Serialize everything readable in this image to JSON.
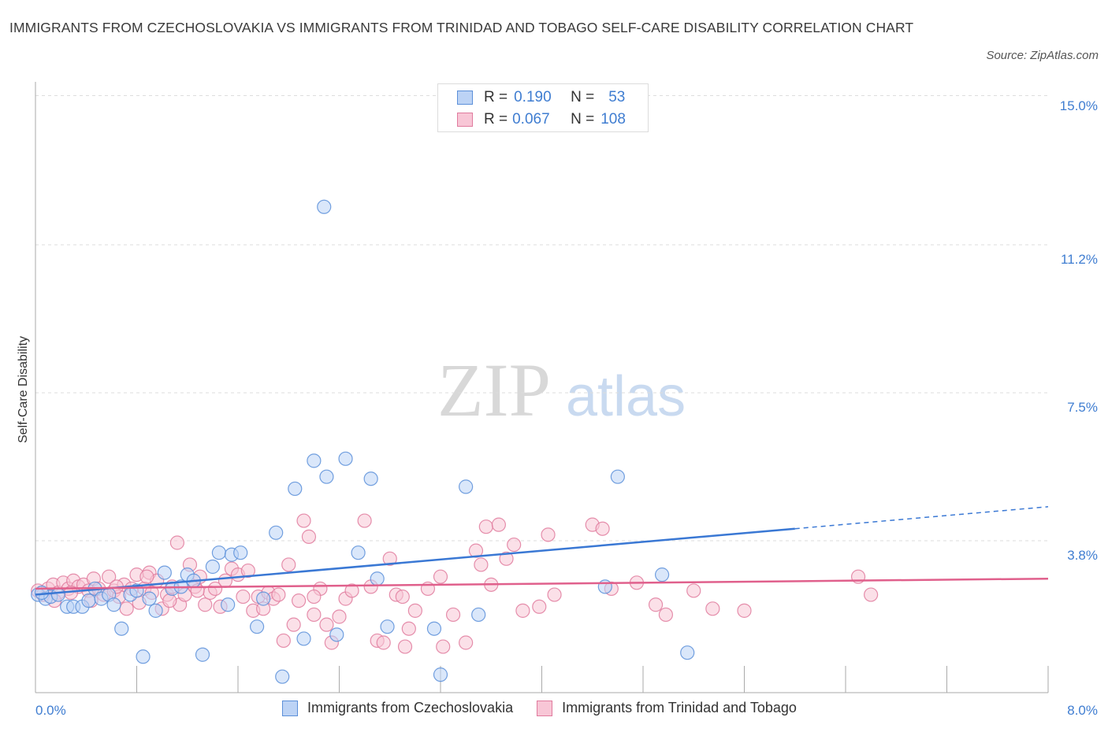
{
  "title": "IMMIGRANTS FROM CZECHOSLOVAKIA VS IMMIGRANTS FROM TRINIDAD AND TOBAGO SELF-CARE DISABILITY CORRELATION CHART",
  "source": "Source: ZipAtlas.com",
  "watermark": {
    "zip": "ZIP",
    "atlas": "atlas"
  },
  "legend_top": {
    "rows": [
      {
        "r_label": "R =",
        "r_value": "0.190",
        "n_label": "N =",
        "n_value": "53",
        "color": "#5b8fd9",
        "fill": "#bcd3f5"
      },
      {
        "r_label": "R =",
        "r_value": "0.067",
        "n_label": "N =",
        "n_value": "108",
        "color": "#e07b9e",
        "fill": "#f8c6d6"
      }
    ]
  },
  "chart_data": {
    "type": "scatter",
    "title": "IMMIGRANTS FROM CZECHOSLOVAKIA VS IMMIGRANTS FROM TRINIDAD AND TOBAGO SELF-CARE DISABILITY CORRELATION CHART",
    "xlabel": "",
    "ylabel": "Self-Care Disability",
    "xlim": [
      0,
      8.0
    ],
    "ylim": [
      0,
      15.0
    ],
    "x_tick_labels": [
      "0.0%",
      "8.0%"
    ],
    "y_ticks": [
      3.8,
      7.5,
      11.2,
      15.0
    ],
    "y_tick_labels": [
      "3.8%",
      "7.5%",
      "11.2%",
      "15.0%"
    ],
    "grid": true,
    "legend_position": "bottom",
    "series": [
      {
        "name": "Immigrants from Czechoslovakia",
        "color": "#5b8fd9",
        "fill": "#bcd3f5",
        "trend": {
          "x0": 0.0,
          "y0": 2.45,
          "x1": 6.0,
          "y1": 4.1,
          "x_dash_end": 8.0,
          "y_dash_end": 4.65
        },
        "points": [
          [
            0.02,
            2.45
          ],
          [
            0.08,
            2.35
          ],
          [
            0.12,
            2.4
          ],
          [
            0.18,
            2.45
          ],
          [
            0.25,
            2.15
          ],
          [
            0.3,
            2.15
          ],
          [
            0.37,
            2.15
          ],
          [
            0.42,
            2.3
          ],
          [
            0.47,
            2.6
          ],
          [
            0.52,
            2.35
          ],
          [
            0.58,
            2.45
          ],
          [
            0.62,
            2.2
          ],
          [
            0.68,
            1.6
          ],
          [
            0.75,
            2.45
          ],
          [
            0.8,
            2.55
          ],
          [
            0.85,
            0.9
          ],
          [
            0.9,
            2.35
          ],
          [
            0.95,
            2.05
          ],
          [
            1.02,
            3.0
          ],
          [
            1.08,
            2.6
          ],
          [
            1.15,
            2.65
          ],
          [
            1.2,
            2.95
          ],
          [
            1.32,
            0.95
          ],
          [
            1.4,
            3.15
          ],
          [
            1.45,
            3.5
          ],
          [
            1.52,
            2.2
          ],
          [
            1.55,
            3.45
          ],
          [
            1.62,
            3.5
          ],
          [
            1.75,
            1.65
          ],
          [
            1.8,
            2.35
          ],
          [
            1.9,
            4.0
          ],
          [
            1.95,
            0.4
          ],
          [
            2.05,
            5.1
          ],
          [
            2.12,
            1.35
          ],
          [
            2.2,
            5.8
          ],
          [
            2.28,
            12.15
          ],
          [
            2.3,
            5.4
          ],
          [
            2.38,
            1.45
          ],
          [
            2.45,
            5.85
          ],
          [
            2.55,
            3.5
          ],
          [
            2.65,
            5.35
          ],
          [
            2.7,
            2.85
          ],
          [
            2.78,
            1.65
          ],
          [
            3.15,
            1.6
          ],
          [
            3.2,
            0.45
          ],
          [
            3.4,
            5.15
          ],
          [
            3.5,
            1.95
          ],
          [
            4.5,
            2.65
          ],
          [
            4.6,
            5.4
          ],
          [
            4.95,
            2.95
          ],
          [
            5.15,
            1.0
          ],
          [
            0.05,
            2.5
          ],
          [
            1.25,
            2.8
          ]
        ]
      },
      {
        "name": "Immigrants from Trinidad and Tobago",
        "color": "#e07b9e",
        "fill": "#f8c6d6",
        "trend": {
          "x0": 0.0,
          "y0": 2.6,
          "x1": 8.0,
          "y1": 2.85
        },
        "points": [
          [
            0.02,
            2.55
          ],
          [
            0.06,
            2.45
          ],
          [
            0.1,
            2.6
          ],
          [
            0.14,
            2.7
          ],
          [
            0.18,
            2.5
          ],
          [
            0.22,
            2.75
          ],
          [
            0.26,
            2.6
          ],
          [
            0.3,
            2.8
          ],
          [
            0.34,
            2.65
          ],
          [
            0.38,
            2.7
          ],
          [
            0.42,
            2.55
          ],
          [
            0.46,
            2.85
          ],
          [
            0.5,
            2.6
          ],
          [
            0.54,
            2.45
          ],
          [
            0.58,
            2.9
          ],
          [
            0.62,
            2.55
          ],
          [
            0.66,
            2.4
          ],
          [
            0.7,
            2.7
          ],
          [
            0.72,
            2.1
          ],
          [
            0.76,
            2.6
          ],
          [
            0.8,
            2.95
          ],
          [
            0.82,
            2.25
          ],
          [
            0.86,
            2.6
          ],
          [
            0.9,
            3.0
          ],
          [
            0.92,
            2.5
          ],
          [
            0.96,
            2.8
          ],
          [
            1.0,
            2.1
          ],
          [
            1.04,
            2.45
          ],
          [
            1.08,
            2.65
          ],
          [
            1.12,
            3.75
          ],
          [
            1.14,
            2.2
          ],
          [
            1.18,
            2.45
          ],
          [
            1.22,
            3.2
          ],
          [
            1.26,
            2.65
          ],
          [
            1.3,
            2.9
          ],
          [
            1.34,
            2.2
          ],
          [
            1.38,
            2.5
          ],
          [
            1.42,
            2.6
          ],
          [
            1.46,
            2.15
          ],
          [
            1.5,
            2.8
          ],
          [
            1.55,
            3.1
          ],
          [
            1.6,
            2.95
          ],
          [
            1.64,
            2.4
          ],
          [
            1.68,
            3.05
          ],
          [
            1.72,
            2.05
          ],
          [
            1.76,
            2.4
          ],
          [
            1.8,
            2.1
          ],
          [
            1.84,
            2.5
          ],
          [
            1.88,
            2.35
          ],
          [
            1.92,
            2.45
          ],
          [
            1.96,
            1.3
          ],
          [
            2.0,
            3.2
          ],
          [
            2.04,
            1.7
          ],
          [
            2.08,
            2.3
          ],
          [
            2.12,
            4.3
          ],
          [
            2.16,
            3.9
          ],
          [
            2.2,
            1.95
          ],
          [
            2.25,
            2.6
          ],
          [
            2.3,
            1.7
          ],
          [
            2.34,
            1.25
          ],
          [
            2.4,
            1.9
          ],
          [
            2.45,
            2.35
          ],
          [
            2.5,
            2.55
          ],
          [
            2.6,
            4.3
          ],
          [
            2.65,
            2.65
          ],
          [
            2.7,
            1.3
          ],
          [
            2.75,
            1.25
          ],
          [
            2.8,
            3.35
          ],
          [
            2.85,
            2.45
          ],
          [
            2.9,
            2.4
          ],
          [
            2.95,
            1.6
          ],
          [
            3.0,
            2.05
          ],
          [
            3.1,
            2.6
          ],
          [
            3.2,
            2.9
          ],
          [
            3.3,
            1.95
          ],
          [
            3.4,
            1.25
          ],
          [
            3.48,
            3.55
          ],
          [
            3.52,
            3.2
          ],
          [
            3.56,
            4.15
          ],
          [
            3.6,
            2.7
          ],
          [
            3.66,
            4.2
          ],
          [
            3.72,
            3.35
          ],
          [
            3.78,
            3.7
          ],
          [
            3.85,
            2.05
          ],
          [
            3.98,
            2.15
          ],
          [
            4.05,
            3.95
          ],
          [
            4.1,
            2.45
          ],
          [
            4.4,
            4.2
          ],
          [
            4.48,
            4.1
          ],
          [
            4.55,
            2.6
          ],
          [
            4.75,
            2.75
          ],
          [
            4.9,
            2.2
          ],
          [
            4.98,
            1.95
          ],
          [
            5.2,
            2.55
          ],
          [
            5.35,
            2.1
          ],
          [
            5.6,
            2.05
          ],
          [
            6.5,
            2.9
          ],
          [
            6.6,
            2.45
          ],
          [
            0.15,
            2.3
          ],
          [
            0.28,
            2.5
          ],
          [
            0.44,
            2.3
          ],
          [
            0.64,
            2.65
          ],
          [
            0.88,
            2.9
          ],
          [
            1.06,
            2.3
          ],
          [
            1.28,
            2.55
          ],
          [
            2.2,
            2.4
          ],
          [
            2.92,
            1.15
          ],
          [
            3.22,
            1.15
          ]
        ]
      }
    ]
  },
  "bottom_legend": [
    {
      "label": "Immigrants from Czechoslovakia",
      "color": "#5b8fd9",
      "fill": "#bcd3f5"
    },
    {
      "label": "Immigrants from Trinidad and Tobago",
      "color": "#e07b9e",
      "fill": "#f8c6d6"
    }
  ]
}
